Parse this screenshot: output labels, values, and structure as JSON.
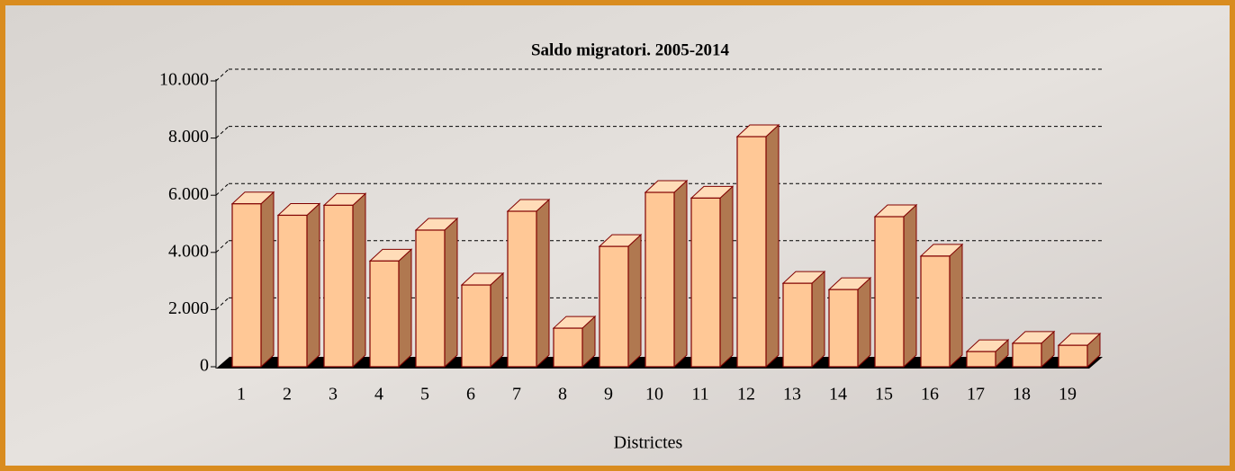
{
  "chart_data": {
    "type": "bar",
    "title": "Saldo migratori. 2005-2014",
    "x_label": "Districtes",
    "categories": [
      "1",
      "2",
      "3",
      "4",
      "5",
      "6",
      "7",
      "8",
      "9",
      "10",
      "11",
      "12",
      "13",
      "14",
      "15",
      "16",
      "17",
      "18",
      "19"
    ],
    "values": [
      5700,
      5300,
      5650,
      3700,
      4780,
      2860,
      5440,
      1350,
      4210,
      6100,
      5900,
      8050,
      2920,
      2700,
      5250,
      3870,
      530,
      820,
      750
    ],
    "color": "#ffc896",
    "ylim": [
      0,
      10000
    ],
    "yticks": [
      0,
      {
        "value": 2000,
        "label": "2.000"
      },
      {
        "value": 4000,
        "label": "4.000"
      },
      {
        "value": 6000,
        "label": "6.000"
      },
      {
        "value": 8000,
        "label": "8.000"
      },
      {
        "value": 10000,
        "label": "10.000"
      }
    ],
    "grid": true
  }
}
